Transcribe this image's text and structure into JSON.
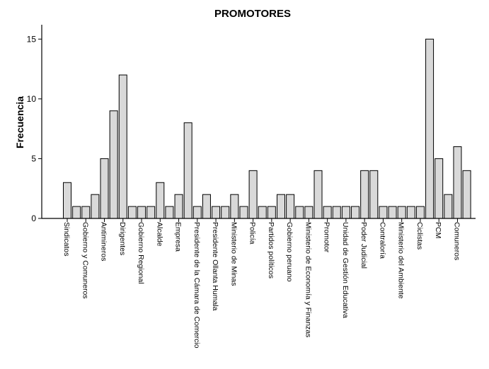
{
  "chart_data": {
    "type": "bar",
    "title": "PROMOTORES",
    "ylabel": "Frecuencia",
    "xlabel": "",
    "ylim": [
      0,
      16.2
    ],
    "yticks": [
      0,
      5,
      10,
      15
    ],
    "grid": false,
    "categories": [
      "Sindicatos",
      "",
      "Gobierno y Comuneros",
      "",
      "Antimineros",
      "",
      "Dirigentes",
      "",
      "Gobierno Regional",
      "",
      "Alcalde",
      "",
      "Empresa",
      "",
      "Presidente de la Cámara de Comercio",
      "",
      "Presidente Ollanta Humala",
      "",
      "Ministerio de Minas",
      "",
      "Policía",
      "",
      "Partidos políticos",
      "",
      "Gobierno peruano",
      "",
      "Ministerio de Economía y Finanzas",
      "",
      "Promotor",
      "",
      "Unidad de Gestión Educativa",
      "",
      "Poder Judicial",
      "",
      "Contraloría",
      "",
      "Ministerio del Ambiente",
      "",
      "Ciclistas",
      "",
      "PCM",
      "",
      "Comuneros",
      ""
    ],
    "values": [
      3,
      1,
      1,
      2,
      5,
      9,
      12,
      1,
      1,
      1,
      3,
      1,
      2,
      8,
      1,
      2,
      1,
      1,
      2,
      1,
      4,
      1,
      1,
      2,
      2,
      1,
      1,
      4,
      1,
      1,
      1,
      1,
      4,
      4,
      1,
      1,
      1,
      1,
      1,
      15,
      5,
      2,
      6,
      4
    ],
    "bar_color": "#d9d9d9",
    "edge_color": "#000000"
  }
}
